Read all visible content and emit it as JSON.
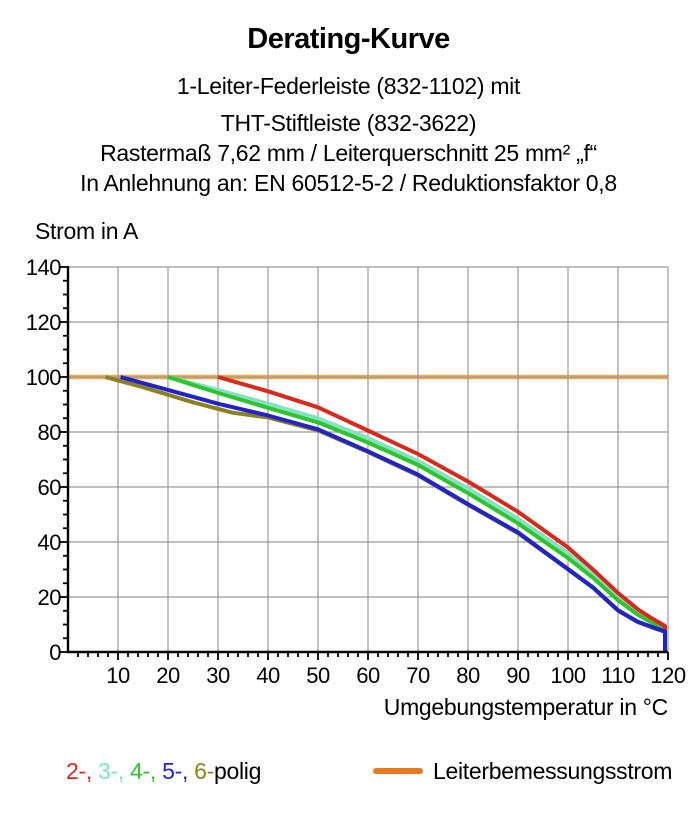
{
  "header": {
    "title": "Derating-Kurve",
    "subtitles": [
      "1-Leiter-Federleiste (832-1102) mit",
      "THT-Stiftleiste (832-3622)",
      "Rastermaß 7,62 mm / Leiterquerschnitt 25 mm² „f“",
      "In Anlehnung an: EN 60512-5-2 / Reduktionsfaktor 0,8"
    ]
  },
  "legend": {
    "poles_segments": [
      {
        "text": "2-, ",
        "color": "#d9291c"
      },
      {
        "text": "3-, ",
        "color": "#82e3c0"
      },
      {
        "text": "4-, ",
        "color": "#2fc42f"
      },
      {
        "text": "5-, ",
        "color": "#2222cc"
      },
      {
        "text": "6-",
        "color": "#8a801e"
      },
      {
        "text": "polig",
        "color": "#000000"
      }
    ],
    "rated_current_label": "Leiterbemessungsstrom",
    "rated_current_color": "#e87a1e"
  },
  "chart_data": {
    "type": "line",
    "title": "Derating-Kurve",
    "xlabel": "Umgebungstemperatur in °C",
    "ylabel": "Strom in A",
    "xlim": [
      0,
      120
    ],
    "ylim": [
      0,
      140
    ],
    "x_ticks": [
      10,
      20,
      30,
      40,
      50,
      60,
      70,
      80,
      90,
      100,
      110,
      120
    ],
    "y_ticks": [
      0,
      20,
      40,
      60,
      80,
      100,
      120,
      140
    ],
    "x_minor_step": 2,
    "y_minor_step": 5,
    "grid": true,
    "grid_color": "#9a9a9a",
    "legend_position": "bottom",
    "series": [
      {
        "name": "Leiterbemessungsstrom",
        "color": "#efa94b",
        "width": 4.5,
        "behind_grid": true,
        "points": [
          [
            0,
            100
          ],
          [
            120,
            100
          ]
        ]
      },
      {
        "name": "6-polig",
        "color": "#8a801e",
        "width": 4,
        "points": [
          [
            7.5,
            100
          ],
          [
            15,
            96.3
          ],
          [
            25,
            90.8
          ],
          [
            33,
            87
          ],
          [
            40,
            85.3
          ],
          [
            50,
            80.6
          ],
          [
            60,
            72.7
          ],
          [
            70,
            64.2
          ],
          [
            80,
            53.5
          ],
          [
            90,
            43.2
          ],
          [
            100,
            30
          ],
          [
            105,
            23.3
          ],
          [
            110,
            15
          ],
          [
            114,
            10.8
          ],
          [
            117,
            8.8
          ],
          [
            119.4,
            7.3
          ],
          [
            119.4,
            0
          ]
        ]
      },
      {
        "name": "3-polig",
        "color": "#82e3c0",
        "width": 4,
        "points": [
          [
            20,
            100
          ],
          [
            30,
            95.3
          ],
          [
            40,
            90.3
          ],
          [
            50,
            85
          ],
          [
            60,
            77.8
          ],
          [
            70,
            69.5
          ],
          [
            80,
            59.5
          ],
          [
            90,
            48.5
          ],
          [
            100,
            36
          ],
          [
            105,
            28.5
          ],
          [
            110,
            20.5
          ],
          [
            114,
            15
          ],
          [
            117,
            11.5
          ],
          [
            119.4,
            9.3
          ],
          [
            119.4,
            0
          ]
        ]
      },
      {
        "name": "4-polig",
        "color": "#2fc42f",
        "width": 4,
        "points": [
          [
            20,
            100
          ],
          [
            30,
            94.2
          ],
          [
            40,
            88.8
          ],
          [
            50,
            83.5
          ],
          [
            60,
            76.2
          ],
          [
            70,
            68
          ],
          [
            80,
            57.8
          ],
          [
            90,
            46.8
          ],
          [
            100,
            34.2
          ],
          [
            105,
            27
          ],
          [
            110,
            18.8
          ],
          [
            114,
            13.5
          ],
          [
            117,
            10.5
          ],
          [
            119.4,
            8.7
          ],
          [
            119.4,
            0
          ]
        ]
      },
      {
        "name": "2-polig",
        "color": "#d9291c",
        "width": 4,
        "points": [
          [
            30,
            100
          ],
          [
            40,
            94.8
          ],
          [
            50,
            89
          ],
          [
            60,
            80.5
          ],
          [
            70,
            72
          ],
          [
            80,
            62
          ],
          [
            90,
            51
          ],
          [
            100,
            38
          ],
          [
            105,
            30
          ],
          [
            110,
            21.5
          ],
          [
            114,
            15.5
          ],
          [
            117,
            12
          ],
          [
            119.4,
            9.5
          ],
          [
            119.4,
            0
          ]
        ]
      },
      {
        "name": "5-polig",
        "color": "#2222cc",
        "width": 4,
        "points": [
          [
            10.5,
            100
          ],
          [
            20,
            95.3
          ],
          [
            30,
            90.3
          ],
          [
            40,
            86
          ],
          [
            50,
            81
          ],
          [
            60,
            73
          ],
          [
            70,
            64.5
          ],
          [
            80,
            53.8
          ],
          [
            90,
            43.5
          ],
          [
            100,
            30.2
          ],
          [
            105,
            23.5
          ],
          [
            110,
            15.2
          ],
          [
            114,
            11
          ],
          [
            117,
            9
          ],
          [
            119.4,
            7.5
          ],
          [
            119.4,
            0
          ]
        ]
      }
    ]
  }
}
